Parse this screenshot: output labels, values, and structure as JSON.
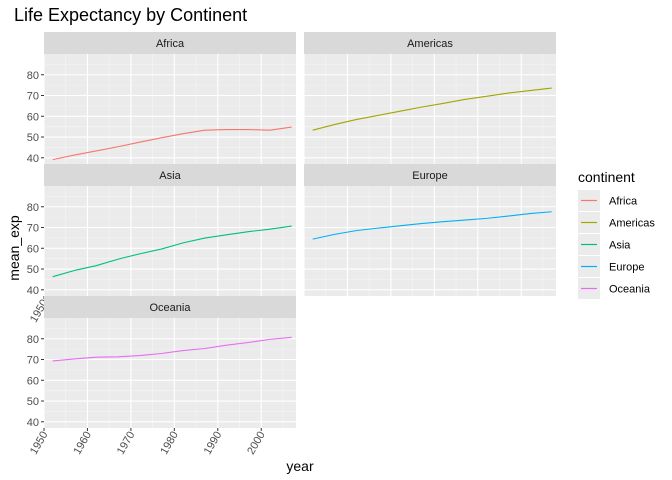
{
  "chart_data": {
    "type": "line",
    "title": "Life Expectancy by Continent",
    "xlabel": "year",
    "ylabel": "mean_exp",
    "xlim": [
      1950,
      2008
    ],
    "ylim": [
      37,
      90
    ],
    "x_ticks": [
      1950,
      1960,
      1970,
      1980,
      1990,
      2000
    ],
    "y_ticks": [
      40,
      50,
      60,
      70,
      80
    ],
    "x_tick_labels": [
      "1950",
      "1960",
      "1970",
      "1980",
      "1990",
      "2000"
    ],
    "y_tick_labels": [
      "40",
      "50",
      "60",
      "70",
      "80"
    ],
    "grid": true,
    "facet_wrap": true,
    "legend": {
      "title": "continent",
      "position": "right"
    },
    "x": [
      1952,
      1957,
      1962,
      1967,
      1972,
      1977,
      1982,
      1987,
      1992,
      1997,
      2002,
      2007
    ],
    "series": [
      {
        "name": "Africa",
        "color": "#F8766D",
        "values": [
          39.1,
          41.3,
          43.3,
          45.3,
          47.5,
          49.6,
          51.6,
          53.3,
          53.6,
          53.6,
          53.3,
          54.8
        ]
      },
      {
        "name": "Americas",
        "color": "#A3A500",
        "values": [
          53.3,
          56.0,
          58.4,
          60.4,
          62.4,
          64.4,
          66.2,
          68.1,
          69.6,
          71.2,
          72.4,
          73.6
        ]
      },
      {
        "name": "Asia",
        "color": "#00BF7D",
        "values": [
          46.3,
          49.3,
          51.6,
          54.7,
          57.3,
          59.6,
          62.6,
          64.9,
          66.5,
          68.0,
          69.2,
          70.7
        ]
      },
      {
        "name": "Europe",
        "color": "#00B0F6",
        "values": [
          64.4,
          66.7,
          68.5,
          69.7,
          70.8,
          71.9,
          72.8,
          73.6,
          74.4,
          75.5,
          76.7,
          77.6
        ]
      },
      {
        "name": "Oceania",
        "color": "#E76BF3",
        "values": [
          69.3,
          70.3,
          71.1,
          71.3,
          71.9,
          72.9,
          74.3,
          75.3,
          76.9,
          78.2,
          79.7,
          80.7
        ]
      }
    ]
  }
}
